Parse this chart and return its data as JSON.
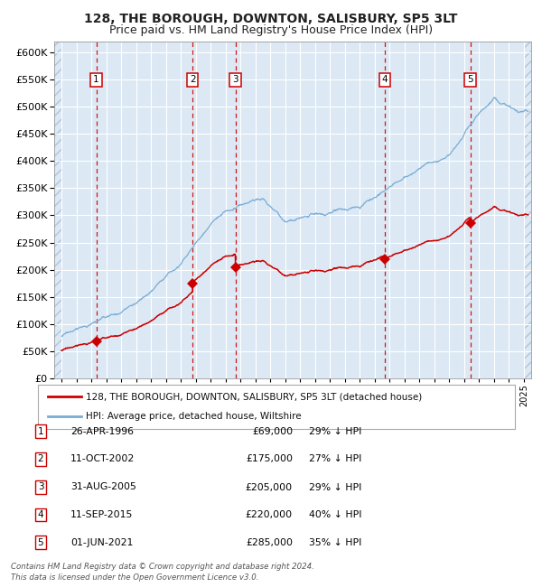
{
  "title": "128, THE BOROUGH, DOWNTON, SALISBURY, SP5 3LT",
  "subtitle": "Price paid vs. HM Land Registry's House Price Index (HPI)",
  "legend_property": "128, THE BOROUGH, DOWNTON, SALISBURY, SP5 3LT (detached house)",
  "legend_hpi": "HPI: Average price, detached house, Wiltshire",
  "footer1": "Contains HM Land Registry data © Crown copyright and database right 2024.",
  "footer2": "This data is licensed under the Open Government Licence v3.0.",
  "sales": [
    {
      "label": "1",
      "date_num": 1996.32,
      "price": 69000,
      "note": "26-APR-1996",
      "pct": "29% ↓ HPI"
    },
    {
      "label": "2",
      "date_num": 2002.78,
      "price": 175000,
      "note": "11-OCT-2002",
      "pct": "27% ↓ HPI"
    },
    {
      "label": "3",
      "date_num": 2005.66,
      "price": 205000,
      "note": "31-AUG-2005",
      "pct": "29% ↓ HPI"
    },
    {
      "label": "4",
      "date_num": 2015.69,
      "price": 220000,
      "note": "11-SEP-2015",
      "pct": "40% ↓ HPI"
    },
    {
      "label": "5",
      "date_num": 2021.41,
      "price": 285000,
      "note": "01-JUN-2021",
      "pct": "35% ↓ HPI"
    }
  ],
  "ylim": [
    0,
    620000
  ],
  "yticks": [
    0,
    50000,
    100000,
    150000,
    200000,
    250000,
    300000,
    350000,
    400000,
    450000,
    500000,
    550000,
    600000
  ],
  "xlim": [
    1993.5,
    2025.5
  ],
  "plot_bg": "#dce9f5",
  "grid_color": "#ffffff",
  "hpi_color": "#7aadd4",
  "sale_color": "#cc0000",
  "vline_color": "#cc0000",
  "marker_color": "#cc0000",
  "title_fontsize": 10,
  "subtitle_fontsize": 9
}
